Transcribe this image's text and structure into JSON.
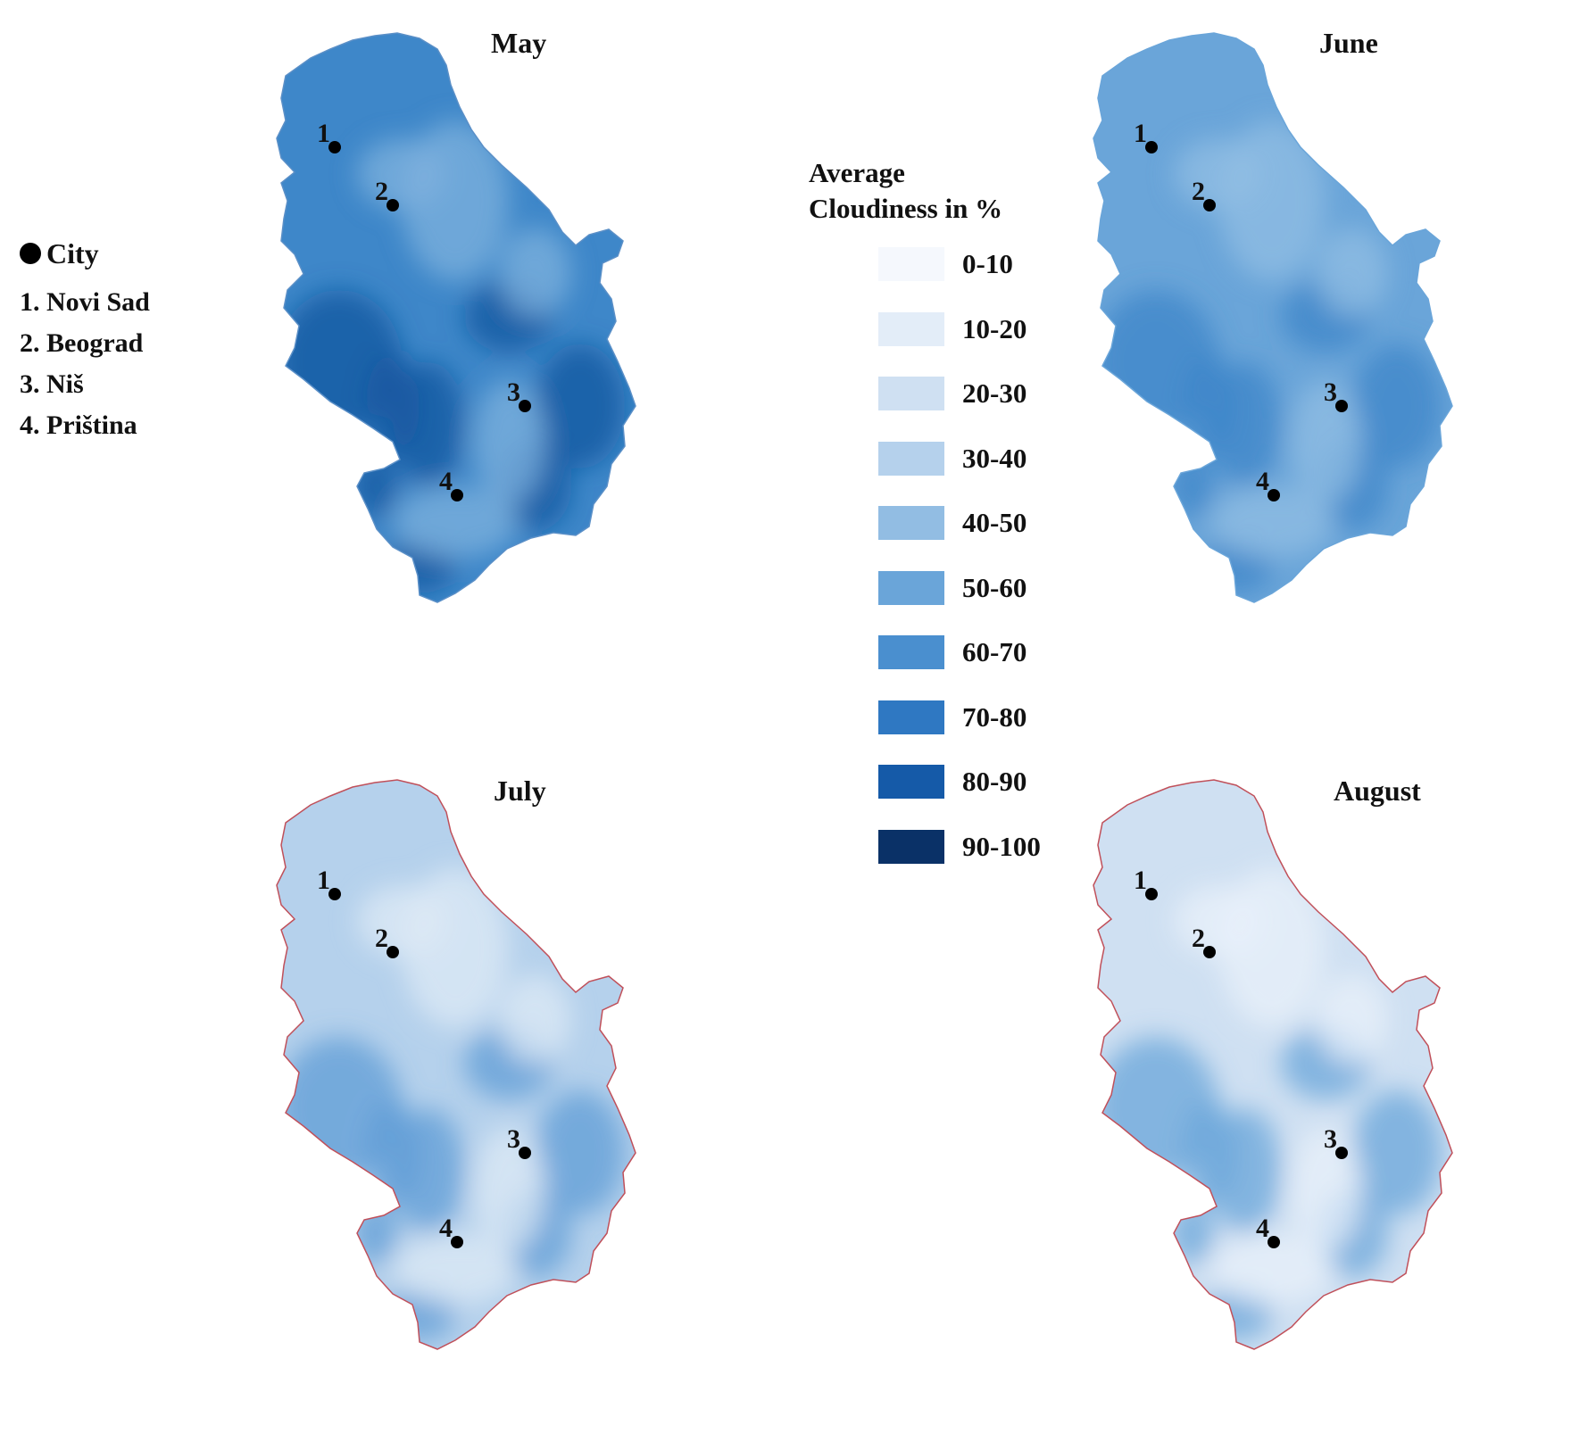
{
  "city_legend": {
    "marker_label": "City",
    "cities": [
      "1. Novi Sad",
      "2. Beograd",
      "3. Niš",
      "4. Priština"
    ]
  },
  "cloud_legend": {
    "title_line1": "Average",
    "title_line2": "Cloudiness in %",
    "classes": [
      {
        "label": "0-10",
        "color": "#f5f8fd"
      },
      {
        "label": "10-20",
        "color": "#e3edf8"
      },
      {
        "label": "20-30",
        "color": "#cfe0f2"
      },
      {
        "label": "30-40",
        "color": "#b5d1ec"
      },
      {
        "label": "40-50",
        "color": "#92bde3"
      },
      {
        "label": "50-60",
        "color": "#6aa5d9"
      },
      {
        "label": "60-70",
        "color": "#4a8fcf"
      },
      {
        "label": "70-80",
        "color": "#2f78c2"
      },
      {
        "label": "80-90",
        "color": "#155aa8"
      },
      {
        "label": "90-100",
        "color": "#0a3167"
      }
    ]
  },
  "maps": [
    {
      "month": "May",
      "base_color": "#3e87c9",
      "dark_color": "#15559f",
      "light_color": "#7fb2de",
      "border_color": "#5a8fc7"
    },
    {
      "month": "June",
      "base_color": "#6aa5d9",
      "dark_color": "#3d86c8",
      "light_color": "#92bde3",
      "border_color": "#6aa5d9"
    },
    {
      "month": "July",
      "base_color": "#b5d1ec",
      "dark_color": "#5f9cd5",
      "light_color": "#dde9f6",
      "border_color": "#c0505a"
    },
    {
      "month": "August",
      "base_color": "#cfe0f2",
      "dark_color": "#6aa5d9",
      "light_color": "#e8f0f9",
      "border_color": "#c0505a"
    }
  ],
  "city_markers": [
    "1",
    "2",
    "3",
    "4"
  ]
}
